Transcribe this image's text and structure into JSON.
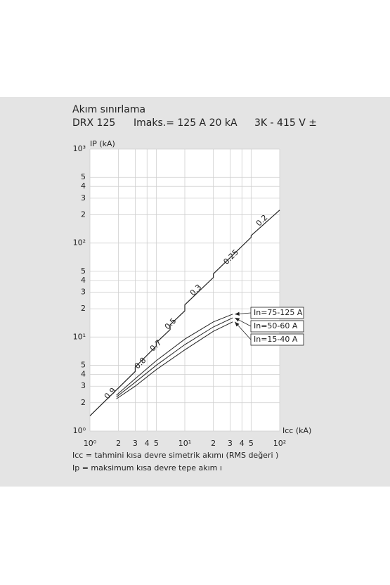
{
  "chart_data": {
    "type": "line",
    "title": "Akım sınırlama",
    "subtitle": [
      "DRX 125",
      "Imaks.= 125 A 20 kA",
      "3K - 415 V ±"
    ],
    "ylabel": "IP (kA)",
    "xlabel": "Icc (kA)",
    "notes": [
      "Icc = tahmini kısa devre simetrik akımı (RMS değeri        )",
      "Ip = maksimum kısa devre tepe akım      ı"
    ],
    "xscale": "log",
    "yscale": "log",
    "grid": true,
    "xlim": [
      1,
      100
    ],
    "ylim": [
      1,
      1000
    ],
    "xticks": [
      {
        "value": 1,
        "label": "10⁰"
      },
      2,
      3,
      4,
      5,
      {
        "value": 10,
        "label": "10¹"
      },
      {
        "value": 20,
        "label": "2"
      },
      {
        "value": 30,
        "label": "3"
      },
      {
        "value": 40,
        "label": "4"
      },
      {
        "value": 50,
        "label": "5"
      },
      {
        "value": 100,
        "label": "10²"
      }
    ],
    "yticks": [
      {
        "value": 1,
        "label": "10⁰"
      },
      2,
      3,
      4,
      5,
      {
        "value": 10,
        "label": "10¹"
      },
      {
        "value": 20,
        "label": "2"
      },
      {
        "value": 30,
        "label": "3"
      },
      {
        "value": 40,
        "label": "4"
      },
      {
        "value": 50,
        "label": "5"
      },
      {
        "value": 100,
        "label": "10²"
      },
      {
        "value": 200,
        "label": "2"
      },
      {
        "value": 300,
        "label": "3"
      },
      {
        "value": 400,
        "label": "4"
      },
      {
        "value": 500,
        "label": "5"
      },
      {
        "value": 1000,
        "label": "10³"
      }
    ],
    "peak_line": {
      "color": "#222222",
      "x": [
        1,
        3,
        3,
        5,
        5,
        7,
        7,
        10,
        10,
        20,
        20,
        50,
        50,
        100
      ],
      "values": [
        1.45,
        4.3,
        4.8,
        8,
        8.7,
        12,
        13.5,
        19,
        22,
        43,
        47,
        115,
        120,
        224
      ],
      "labels": [
        "0.9",
        "0.8",
        "0.7",
        "0.5",
        "0.3",
        "0.25",
        "0.2"
      ]
    },
    "series": [
      {
        "name": "In=75-125  A",
        "color": "#222222",
        "x": [
          1.9,
          3,
          5,
          10,
          20,
          32
        ],
        "values": [
          2.4,
          3.6,
          5.6,
          9.5,
          14.5,
          17.5
        ]
      },
      {
        "name": "In=50-60  A",
        "color": "#222222",
        "x": [
          1.9,
          3,
          5,
          10,
          20,
          32
        ],
        "values": [
          2.3,
          3.3,
          5,
          8.3,
          12.8,
          16
        ]
      },
      {
        "name": "In=15-40  A",
        "color": "#222222",
        "x": [
          1.9,
          3,
          5,
          10,
          20,
          32
        ],
        "values": [
          2.2,
          3.0,
          4.5,
          7.3,
          11.5,
          14.5
        ]
      }
    ]
  }
}
